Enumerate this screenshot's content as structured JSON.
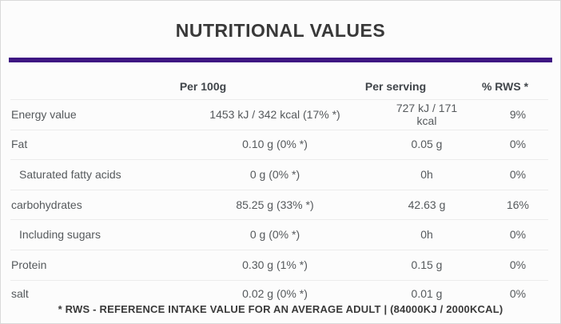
{
  "title": "NUTRITIONAL VALUES",
  "footnote": "* RWS - REFERENCE INTAKE VALUE FOR AN AVERAGE ADULT | (84000KJ / 2000KCAL)",
  "colors": {
    "accent_bar": "#3e1682",
    "title_text": "#393939",
    "header_text": "#40454a",
    "body_text": "#55595c",
    "separator": "#ececec",
    "card_border": "#d9d9d9",
    "background": "#fcfcfc"
  },
  "table": {
    "columns": [
      "",
      "Per 100g",
      "Per serving",
      "% RWS *"
    ],
    "rows": [
      {
        "label": "Energy value",
        "indent": false,
        "per_100g": "1453 kJ / 342 kcal (17% *)",
        "per_serving": "727 kJ / 171 kcal",
        "rws": "9%"
      },
      {
        "label": "Fat",
        "indent": false,
        "per_100g": "0.10 g (0% *)",
        "per_serving": "0.05 g",
        "rws": "0%"
      },
      {
        "label": "Saturated fatty acids",
        "indent": true,
        "per_100g": "0 g (0% *)",
        "per_serving": "0h",
        "rws": "0%"
      },
      {
        "label": "carbohydrates",
        "indent": false,
        "per_100g": "85.25 g (33% *)",
        "per_serving": "42.63 g",
        "rws": "16%"
      },
      {
        "label": "Including sugars",
        "indent": true,
        "per_100g": "0 g (0% *)",
        "per_serving": "0h",
        "rws": "0%"
      },
      {
        "label": "Protein",
        "indent": false,
        "per_100g": "0.30 g (1% *)",
        "per_serving": "0.15 g",
        "rws": "0%"
      },
      {
        "label": "salt",
        "indent": false,
        "per_100g": "0.02 g (0% *)",
        "per_serving": "0.01 g",
        "rws": "0%"
      }
    ]
  }
}
